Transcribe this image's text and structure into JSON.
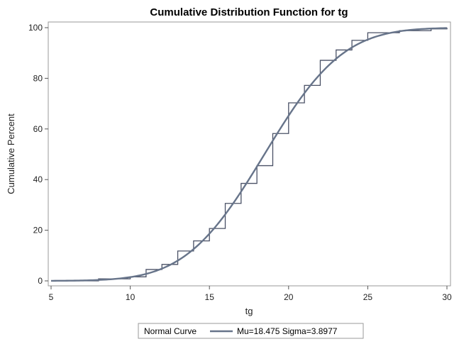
{
  "chart_data": {
    "type": "line",
    "title": "Cumulative Distribution Function for tg",
    "xlabel": "tg",
    "ylabel": "Cumulative Percent",
    "xlim": [
      5,
      30
    ],
    "ylim": [
      0,
      100
    ],
    "xticks": [
      "5",
      "10",
      "15",
      "20",
      "25",
      "30"
    ],
    "yticks": [
      "0",
      "20",
      "40",
      "60",
      "80",
      "100"
    ],
    "grid": false,
    "colors": {
      "line": "#67748a",
      "step": "#4a5166",
      "frame": "#9a9a9a"
    },
    "legend": {
      "placement": "bottom",
      "title": "Normal Curve",
      "entry": "Mu=18.475 Sigma=3.8977"
    },
    "normal_curve": {
      "mu": 18.475,
      "sigma": 3.8977
    },
    "series": [
      {
        "type": "step",
        "x": [
          5,
          8,
          10,
          11,
          12,
          13,
          14,
          15,
          16,
          17,
          18,
          19,
          20,
          21,
          22,
          23,
          24,
          25,
          27,
          29,
          30
        ],
        "y": [
          0,
          0.8,
          1.6,
          4.5,
          6.5,
          11.8,
          15.8,
          20.7,
          30.6,
          38.5,
          45.5,
          58.2,
          70.3,
          77.2,
          87.1,
          91.2,
          95.0,
          98.0,
          98.8,
          99.5,
          100
        ]
      }
    ]
  }
}
